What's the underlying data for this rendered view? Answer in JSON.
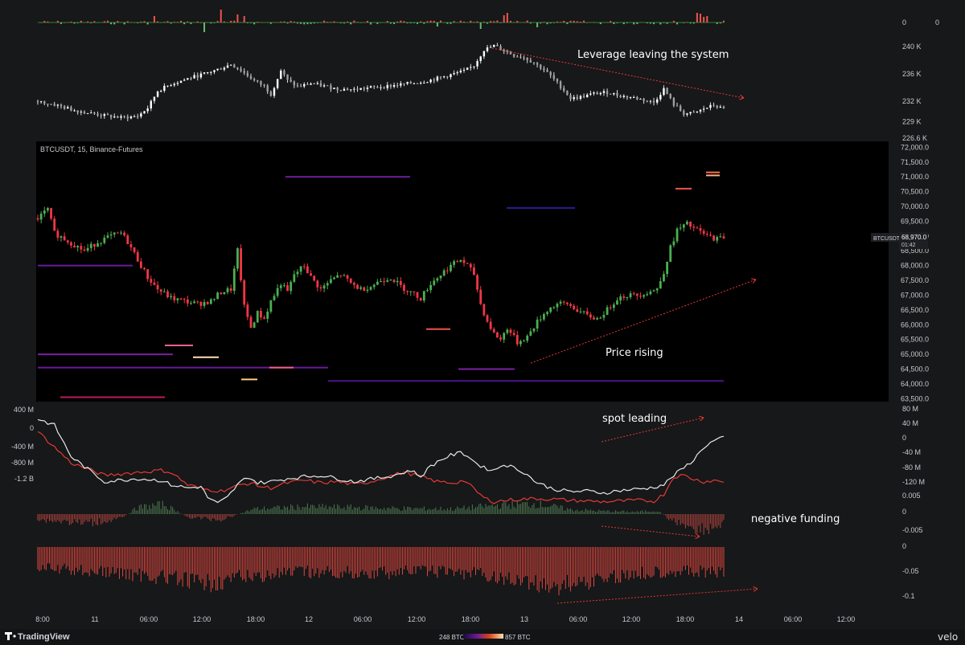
{
  "app": {
    "brand": "TradingView",
    "watermark": "velo"
  },
  "symbol": {
    "label": "BTCUSDT, 15, Binance-Futures",
    "last_price": "68,970.0",
    "countdown": "01:42",
    "price_tag": "BTCUSDT"
  },
  "heatmap_legend": {
    "min": "248 BTC",
    "max": "857 BTC"
  },
  "annotations": {
    "leverage": "Leverage leaving the system",
    "price": "Price rising",
    "spot": "spot leading",
    "funding": "negative funding"
  },
  "colors": {
    "background": "#161819",
    "up": "#4caf50",
    "down": "#f23645",
    "oi": "#e0e0e0",
    "spot": "#e8e8e8",
    "perp": "#e53935",
    "liq_line": "#7b1fa2",
    "arrow": "#e53935"
  },
  "chart_data": [
    {
      "type": "bar",
      "panel": "top-histogram",
      "yticks": [
        "0"
      ],
      "right_tick": "0"
    },
    {
      "type": "line",
      "panel": "open-interest",
      "yticks": [
        "240 K",
        "236 K",
        "232 K",
        "229 K",
        "226.6 K"
      ],
      "ylim": [
        226600,
        241500
      ],
      "points": [
        [
          0,
          232
        ],
        [
          5,
          231.5
        ],
        [
          10,
          230.8
        ],
        [
          15,
          230.3
        ],
        [
          20,
          229.9
        ],
        [
          25,
          229.6
        ],
        [
          30,
          229.8
        ],
        [
          33,
          231
        ],
        [
          36,
          233.5
        ],
        [
          40,
          234.5
        ],
        [
          45,
          235.3
        ],
        [
          50,
          236
        ],
        [
          55,
          236.8
        ],
        [
          58,
          237.4
        ],
        [
          61,
          236.5
        ],
        [
          65,
          235
        ],
        [
          68,
          234.2
        ],
        [
          70,
          233
        ],
        [
          73,
          236.5
        ],
        [
          75,
          235
        ],
        [
          78,
          234.1
        ],
        [
          82,
          234.6
        ],
        [
          86,
          234.2
        ],
        [
          90,
          233.8
        ],
        [
          95,
          233.7
        ],
        [
          100,
          234
        ],
        [
          105,
          234.2
        ],
        [
          110,
          234.5
        ],
        [
          115,
          234.8
        ],
        [
          118,
          235.1
        ],
        [
          122,
          235.6
        ],
        [
          125,
          236
        ],
        [
          128,
          236.4
        ],
        [
          131,
          237.2
        ],
        [
          134,
          239.5
        ],
        [
          137,
          240.1
        ],
        [
          140,
          239.4
        ],
        [
          143,
          238.7
        ],
        [
          146,
          238.4
        ],
        [
          149,
          237.6
        ],
        [
          152,
          236.6
        ],
        [
          155,
          235.2
        ],
        [
          158,
          233.6
        ],
        [
          160,
          232.4
        ],
        [
          163,
          232.6
        ],
        [
          167,
          233.1
        ],
        [
          171,
          233.3
        ],
        [
          175,
          232.8
        ],
        [
          179,
          232.5
        ],
        [
          182,
          232.2
        ],
        [
          185,
          231.8
        ],
        [
          188,
          233.8
        ],
        [
          191,
          231.5
        ],
        [
          194,
          230.2
        ],
        [
          197,
          230.2
        ],
        [
          200,
          230.9
        ],
        [
          203,
          231.4
        ],
        [
          206,
          230.8
        ]
      ]
    },
    {
      "type": "candlestick",
      "panel": "price",
      "title": "BTCUSDT, 15, Binance-Futures",
      "yticks": [
        "72,000.0",
        "71,500.0",
        "71,000.0",
        "70,500.0",
        "70,000.0",
        "69,500.0",
        "69,000.0",
        "68,500.0",
        "68,000.0",
        "67,500.0",
        "67,000.0",
        "66,500.0",
        "66,000.0",
        "65,500.0",
        "65,000.0",
        "64,500.0",
        "64,000.0",
        "63,500.0"
      ],
      "ylim": [
        63400,
        72200
      ],
      "close_path": [
        [
          0,
          69600
        ],
        [
          3,
          69900
        ],
        [
          5,
          69100
        ],
        [
          8,
          68900
        ],
        [
          11,
          68700
        ],
        [
          14,
          68500
        ],
        [
          18,
          68800
        ],
        [
          22,
          69000
        ],
        [
          25,
          69100
        ],
        [
          27,
          68800
        ],
        [
          30,
          68200
        ],
        [
          33,
          67600
        ],
        [
          36,
          67200
        ],
        [
          40,
          66900
        ],
        [
          44,
          66800
        ],
        [
          48,
          66700
        ],
        [
          52,
          66800
        ],
        [
          55,
          67100
        ],
        [
          58,
          67200
        ],
        [
          60,
          68500
        ],
        [
          62,
          66600
        ],
        [
          64,
          65900
        ],
        [
          66,
          66400
        ],
        [
          68,
          66200
        ],
        [
          70,
          66800
        ],
        [
          73,
          67400
        ],
        [
          75,
          67100
        ],
        [
          77,
          67700
        ],
        [
          80,
          68000
        ],
        [
          82,
          67600
        ],
        [
          85,
          67200
        ],
        [
          88,
          67500
        ],
        [
          91,
          67700
        ],
        [
          94,
          67400
        ],
        [
          97,
          67200
        ],
        [
          100,
          67300
        ],
        [
          103,
          67500
        ],
        [
          106,
          67600
        ],
        [
          109,
          67300
        ],
        [
          112,
          67100
        ],
        [
          115,
          66900
        ],
        [
          118,
          67400
        ],
        [
          121,
          67700
        ],
        [
          124,
          68000
        ],
        [
          127,
          68200
        ],
        [
          129,
          68000
        ],
        [
          131,
          67700
        ],
        [
          133,
          66700
        ],
        [
          135,
          66100
        ],
        [
          137,
          65700
        ],
        [
          139,
          65500
        ],
        [
          141,
          65900
        ],
        [
          144,
          65400
        ],
        [
          147,
          65600
        ],
        [
          150,
          66100
        ],
        [
          153,
          66500
        ],
        [
          156,
          66700
        ],
        [
          159,
          66700
        ],
        [
          162,
          66500
        ],
        [
          165,
          66300
        ],
        [
          168,
          66200
        ],
        [
          171,
          66500
        ],
        [
          174,
          66900
        ],
        [
          177,
          67000
        ],
        [
          180,
          67000
        ],
        [
          183,
          67100
        ],
        [
          186,
          67200
        ],
        [
          188,
          67800
        ],
        [
          190,
          68600
        ],
        [
          192,
          69200
        ],
        [
          195,
          69400
        ],
        [
          198,
          69200
        ],
        [
          201,
          69000
        ],
        [
          204,
          68900
        ],
        [
          206,
          68970
        ]
      ]
    },
    {
      "type": "line",
      "panel": "cvd",
      "left_yticks": [
        "400 M",
        "0",
        "-400 M",
        "-800 M",
        "-1.2 B"
      ],
      "right_yticks": [
        "80 M",
        "40 M",
        "0",
        "-40 M",
        "-80 M",
        "-120 M"
      ],
      "series": [
        {
          "name": "",
          "points": [
            [
              0,
              10
            ],
            [
              10,
              -40
            ],
            [
              20,
              -60
            ],
            [
              30,
              -55
            ],
            [
              37,
              -52
            ],
            [
              40,
              -55
            ],
            [
              45,
              -75
            ],
            [
              50,
              -82
            ],
            [
              55,
              -85
            ],
            [
              58,
              -80
            ],
            [
              61,
              -75
            ],
            [
              64,
              -72
            ],
            [
              67,
              -78
            ],
            [
              70,
              -80
            ],
            [
              75,
              -72
            ],
            [
              80,
              -68
            ],
            [
              85,
              -72
            ],
            [
              90,
              -70
            ],
            [
              95,
              -75
            ],
            [
              100,
              -70
            ],
            [
              105,
              -62
            ],
            [
              110,
              -55
            ],
            [
              115,
              -62
            ],
            [
              120,
              -70
            ],
            [
              125,
              -72
            ],
            [
              128,
              -68
            ],
            [
              131,
              -82
            ],
            [
              134,
              -96
            ],
            [
              137,
              -102
            ],
            [
              140,
              -100
            ],
            [
              145,
              -98
            ],
            [
              150,
              -97
            ],
            [
              155,
              -98
            ],
            [
              160,
              -100
            ],
            [
              165,
              -101
            ],
            [
              170,
              -102
            ],
            [
              175,
              -101
            ],
            [
              180,
              -100
            ],
            [
              185,
              -101
            ],
            [
              188,
              -90
            ],
            [
              191,
              -62
            ],
            [
              194,
              -60
            ],
            [
              197,
              -66
            ],
            [
              200,
              -70
            ],
            [
              203,
              -68
            ],
            [
              206,
              -70
            ]
          ]
        },
        {
          "name": "",
          "points": [
            [
              0,
              30
            ],
            [
              5,
              20
            ],
            [
              10,
              -30
            ],
            [
              20,
              -70
            ],
            [
              30,
              -65
            ],
            [
              37,
              -68
            ],
            [
              40,
              -75
            ],
            [
              45,
              -80
            ],
            [
              49,
              -78
            ],
            [
              51,
              -95
            ],
            [
              54,
              -105
            ],
            [
              57,
              -95
            ],
            [
              60,
              -75
            ],
            [
              63,
              -62
            ],
            [
              66,
              -72
            ],
            [
              70,
              -70
            ],
            [
              75,
              -65
            ],
            [
              80,
              -62
            ],
            [
              85,
              -60
            ],
            [
              90,
              -65
            ],
            [
              95,
              -70
            ],
            [
              100,
              -66
            ],
            [
              105,
              -62
            ],
            [
              109,
              -57
            ],
            [
              112,
              -52
            ],
            [
              115,
              -62
            ],
            [
              118,
              -45
            ],
            [
              121,
              -35
            ],
            [
              124,
              -28
            ],
            [
              127,
              -24
            ],
            [
              129,
              -28
            ],
            [
              131,
              -38
            ],
            [
              134,
              -48
            ],
            [
              137,
              -52
            ],
            [
              140,
              -42
            ],
            [
              143,
              -48
            ],
            [
              146,
              -55
            ],
            [
              150,
              -72
            ],
            [
              155,
              -82
            ],
            [
              160,
              -86
            ],
            [
              165,
              -85
            ],
            [
              170,
              -88
            ],
            [
              175,
              -84
            ],
            [
              180,
              -82
            ],
            [
              184,
              -80
            ],
            [
              188,
              -75
            ],
            [
              191,
              -60
            ],
            [
              194,
              -48
            ],
            [
              197,
              -35
            ],
            [
              200,
              -15
            ],
            [
              203,
              -5
            ],
            [
              206,
              0
            ]
          ]
        }
      ]
    },
    {
      "type": "bar",
      "panel": "funding",
      "yticks": [
        "0.005",
        "0",
        "-0.005"
      ],
      "values_profile": [
        [
          0,
          -0.0015
        ],
        [
          15,
          -0.0025
        ],
        [
          25,
          -0.0012
        ],
        [
          30,
          0.0018
        ],
        [
          38,
          0.0026
        ],
        [
          45,
          -0.0008
        ],
        [
          55,
          -0.0016
        ],
        [
          65,
          0.0014
        ],
        [
          80,
          0.002
        ],
        [
          95,
          0.0018
        ],
        [
          110,
          0.0015
        ],
        [
          125,
          0.0014
        ],
        [
          140,
          0.0025
        ],
        [
          150,
          0.0028
        ],
        [
          160,
          0.0012
        ],
        [
          170,
          0.0008
        ],
        [
          180,
          0.0006
        ],
        [
          186,
          0.001
        ],
        [
          190,
          -0.0015
        ],
        [
          196,
          -0.0035
        ],
        [
          201,
          -0.0042
        ],
        [
          206,
          -0.0025
        ]
      ]
    },
    {
      "type": "bar",
      "panel": "basis",
      "yticks": [
        "0",
        "-0.05",
        "-0.1"
      ],
      "values_profile": [
        [
          0,
          -0.04
        ],
        [
          15,
          -0.045
        ],
        [
          35,
          -0.055
        ],
        [
          50,
          -0.07
        ],
        [
          65,
          -0.055
        ],
        [
          80,
          -0.048
        ],
        [
          100,
          -0.05
        ],
        [
          115,
          -0.045
        ],
        [
          130,
          -0.05
        ],
        [
          145,
          -0.065
        ],
        [
          155,
          -0.075
        ],
        [
          165,
          -0.065
        ],
        [
          180,
          -0.05
        ],
        [
          190,
          -0.045
        ],
        [
          206,
          -0.05
        ]
      ]
    }
  ],
  "x_axis": {
    "ticks": [
      {
        "label": "8:00",
        "x": 53
      },
      {
        "label": "11",
        "x": 118
      },
      {
        "label": "06:00",
        "x": 185
      },
      {
        "label": "12:00",
        "x": 251
      },
      {
        "label": "18:00",
        "x": 318
      },
      {
        "label": "12",
        "x": 384
      },
      {
        "label": "06:00",
        "x": 451
      },
      {
        "label": "12:00",
        "x": 518
      },
      {
        "label": "18:00",
        "x": 585
      },
      {
        "label": "13",
        "x": 652
      },
      {
        "label": "06:00",
        "x": 719
      },
      {
        "label": "12:00",
        "x": 785
      },
      {
        "label": "18:00",
        "x": 852
      },
      {
        "label": "14",
        "x": 919
      },
      {
        "label": "06:00",
        "x": 986
      },
      {
        "label": "12:00",
        "x": 1052
      }
    ]
  }
}
